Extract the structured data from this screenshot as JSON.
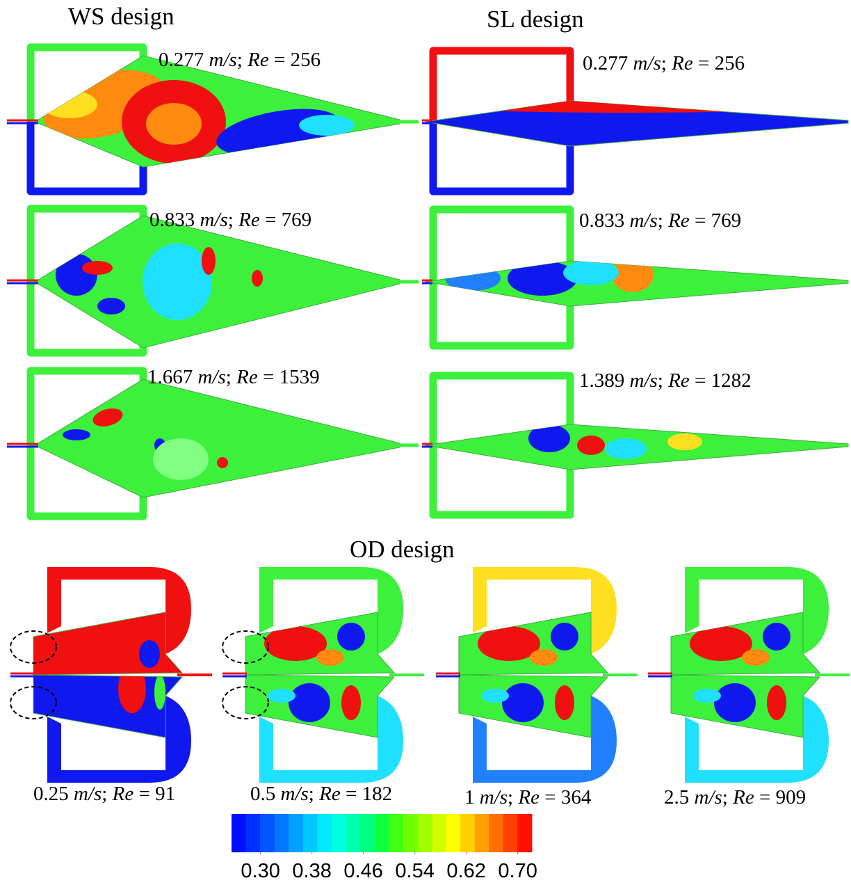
{
  "sections": [
    {
      "title": "WS design",
      "panels": [
        {
          "label": [
            "0.277",
            "m/s",
            ";",
            "Re",
            "=",
            "256"
          ]
        },
        {
          "label": [
            "0.833",
            "m/s",
            ";",
            "Re",
            "=",
            "769"
          ]
        },
        {
          "label": [
            "1.667",
            "m/s",
            ";",
            "Re",
            "=",
            "1539"
          ]
        }
      ]
    },
    {
      "title": "SL design",
      "panels": [
        {
          "label": [
            "0.277",
            "m/s",
            ";",
            "Re",
            "=",
            "256"
          ]
        },
        {
          "label": [
            "0.833",
            "m/s",
            ";",
            "Re",
            "=",
            "769"
          ]
        },
        {
          "label": [
            "1.389",
            "m/s",
            ";",
            "Re",
            "=",
            "1282"
          ]
        }
      ]
    },
    {
      "title": "OD design",
      "panels": [
        {
          "label": [
            "0.25",
            "m/s",
            ";",
            "Re",
            "=",
            "91"
          ]
        },
        {
          "label": [
            "0.5",
            "m/s",
            ";",
            "Re",
            "=",
            "182"
          ]
        },
        {
          "label": [
            "1",
            "m/s",
            ";",
            "Re",
            "=",
            "364"
          ]
        },
        {
          "label": [
            "2.5",
            "m/s",
            ";",
            "Re",
            "=",
            "909"
          ]
        }
      ]
    }
  ],
  "colorbar": {
    "lim": [
      0.255,
      0.722
    ],
    "ticks": [
      {
        "value": 0.3,
        "label": "0.30"
      },
      {
        "value": 0.38,
        "label": "0.38"
      },
      {
        "value": 0.46,
        "label": "0.46"
      },
      {
        "value": 0.54,
        "label": "0.54"
      },
      {
        "value": 0.62,
        "label": "0.62"
      },
      {
        "value": 0.7,
        "label": "0.70"
      }
    ],
    "colors": [
      "#0010ff",
      "#0030ff",
      "#0055ff",
      "#0078ff",
      "#00a0ff",
      "#00c8ff",
      "#00eaff",
      "#00ffe0",
      "#00ffb0",
      "#00ff80",
      "#10ff40",
      "#40ff10",
      "#70ff00",
      "#a0ff00",
      "#d0ff00",
      "#ffff00",
      "#ffd000",
      "#ffa000",
      "#ff7000",
      "#ff4000",
      "#ff1000"
    ]
  }
}
